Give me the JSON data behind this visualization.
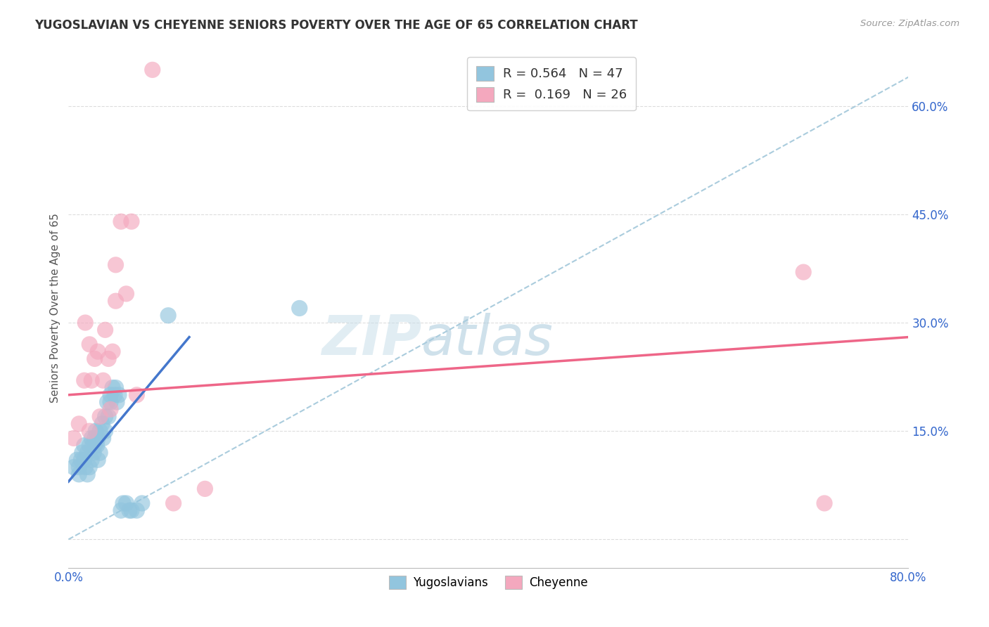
{
  "title": "YUGOSLAVIAN VS CHEYENNE SENIORS POVERTY OVER THE AGE OF 65 CORRELATION CHART",
  "source": "Source: ZipAtlas.com",
  "ylabel": "Seniors Poverty Over the Age of 65",
  "xlim": [
    0.0,
    0.8
  ],
  "ylim": [
    -0.04,
    0.68
  ],
  "yticks": [
    0.0,
    0.15,
    0.3,
    0.45,
    0.6
  ],
  "ytick_labels": [
    "",
    "15.0%",
    "30.0%",
    "45.0%",
    "60.0%"
  ],
  "xticks": [
    0.0,
    0.16,
    0.32,
    0.48,
    0.64,
    0.8
  ],
  "xtick_labels": [
    "0.0%",
    "",
    "",
    "",
    "",
    "80.0%"
  ],
  "blue_color": "#92C5DE",
  "pink_color": "#F4A8BE",
  "blue_line_color": "#4477CC",
  "pink_line_color": "#EE6688",
  "diagonal_color": "#AACCDD",
  "legend_R1": "0.564",
  "legend_N1": "47",
  "legend_R2": "0.169",
  "legend_N2": "26",
  "blue_line_x0": 0.0,
  "blue_line_y0": 0.08,
  "blue_line_x1": 0.115,
  "blue_line_y1": 0.28,
  "pink_line_x0": 0.0,
  "pink_line_y0": 0.2,
  "pink_line_x1": 0.8,
  "pink_line_y1": 0.28,
  "blue_scatter_x": [
    0.005,
    0.008,
    0.01,
    0.01,
    0.012,
    0.013,
    0.015,
    0.015,
    0.016,
    0.018,
    0.018,
    0.02,
    0.02,
    0.022,
    0.022,
    0.023,
    0.024,
    0.025,
    0.025,
    0.026,
    0.027,
    0.028,
    0.028,
    0.03,
    0.03,
    0.032,
    0.033,
    0.035,
    0.035,
    0.037,
    0.038,
    0.04,
    0.04,
    0.042,
    0.044,
    0.045,
    0.046,
    0.048,
    0.05,
    0.052,
    0.055,
    0.058,
    0.06,
    0.065,
    0.07,
    0.095,
    0.22
  ],
  "blue_scatter_y": [
    0.1,
    0.11,
    0.1,
    0.09,
    0.11,
    0.12,
    0.11,
    0.13,
    0.1,
    0.12,
    0.09,
    0.13,
    0.1,
    0.14,
    0.11,
    0.13,
    0.12,
    0.14,
    0.13,
    0.15,
    0.13,
    0.14,
    0.11,
    0.15,
    0.12,
    0.16,
    0.14,
    0.17,
    0.15,
    0.19,
    0.17,
    0.2,
    0.19,
    0.21,
    0.2,
    0.21,
    0.19,
    0.2,
    0.04,
    0.05,
    0.05,
    0.04,
    0.04,
    0.04,
    0.05,
    0.31,
    0.32
  ],
  "pink_scatter_x": [
    0.005,
    0.01,
    0.015,
    0.016,
    0.02,
    0.022,
    0.025,
    0.028,
    0.03,
    0.033,
    0.035,
    0.038,
    0.04,
    0.042,
    0.045,
    0.05,
    0.055,
    0.06,
    0.065,
    0.08,
    0.1,
    0.13,
    0.7,
    0.72,
    0.02,
    0.045
  ],
  "pink_scatter_y": [
    0.14,
    0.16,
    0.22,
    0.3,
    0.27,
    0.22,
    0.25,
    0.26,
    0.17,
    0.22,
    0.29,
    0.25,
    0.18,
    0.26,
    0.33,
    0.44,
    0.34,
    0.44,
    0.2,
    0.65,
    0.05,
    0.07,
    0.37,
    0.05,
    0.15,
    0.38
  ],
  "watermark_zip": "ZIP",
  "watermark_atlas": "atlas",
  "background_color": "#FFFFFF",
  "grid_color": "#DDDDDD"
}
